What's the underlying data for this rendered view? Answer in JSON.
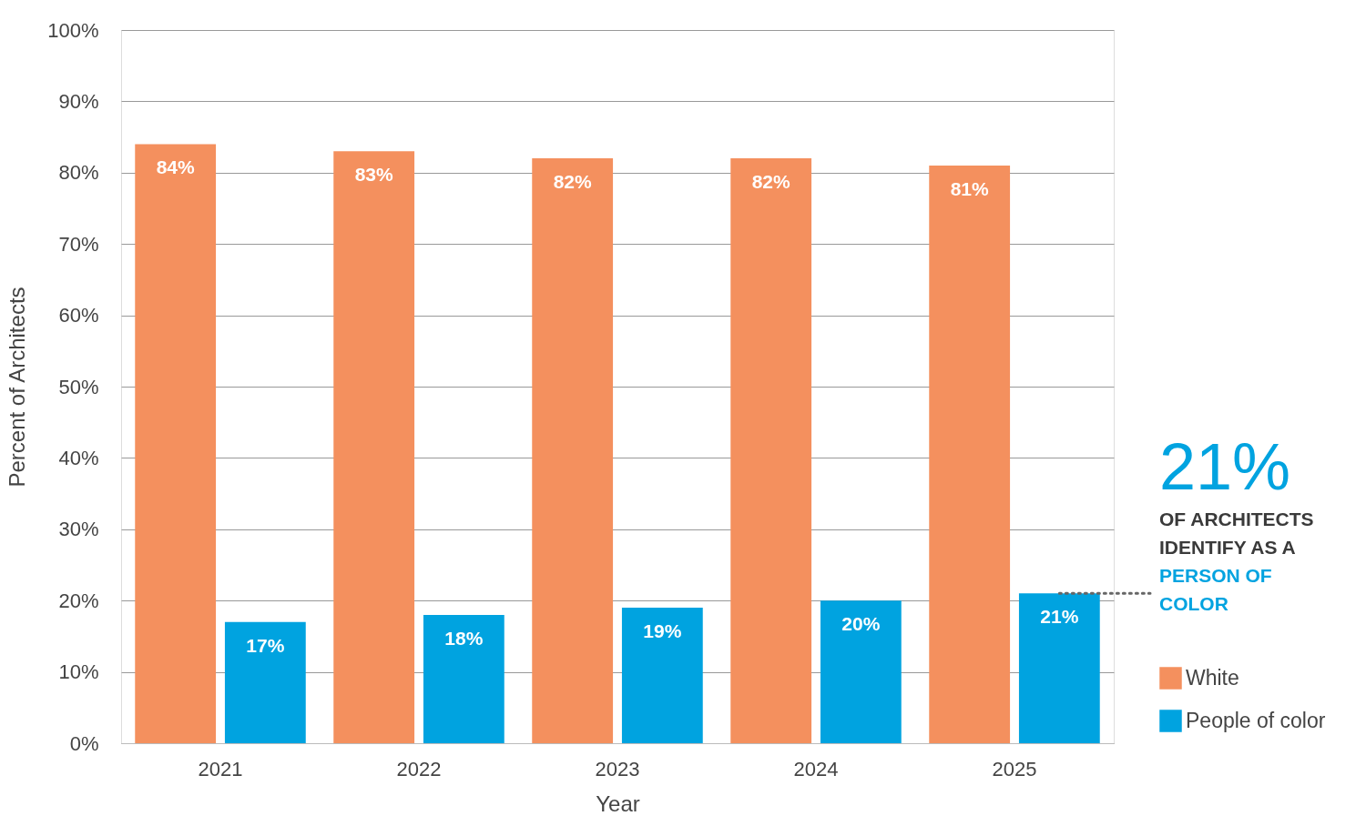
{
  "chart_data": {
    "type": "bar",
    "xlabel": "Year",
    "ylabel": "Percent of Architects",
    "categories": [
      "2021",
      "2022",
      "2023",
      "2024",
      "2025"
    ],
    "series": [
      {
        "name": "White",
        "color": "#f4905e",
        "values": [
          84,
          83,
          82,
          82,
          81
        ],
        "value_labels": [
          "84%",
          "83%",
          "82%",
          "82%",
          "81%"
        ]
      },
      {
        "name": "People of color",
        "color": "#00a3e0",
        "values": [
          17,
          18,
          19,
          20,
          21
        ],
        "value_labels": [
          "17%",
          "18%",
          "19%",
          "20%",
          "21%"
        ]
      }
    ],
    "ylim": [
      0,
      100
    ],
    "yticks": [
      {
        "value": 0,
        "label": "0%"
      },
      {
        "value": 10,
        "label": "10%"
      },
      {
        "value": 20,
        "label": "20%"
      },
      {
        "value": 30,
        "label": "30%"
      },
      {
        "value": 40,
        "label": "40%"
      },
      {
        "value": 50,
        "label": "50%"
      },
      {
        "value": 60,
        "label": "60%"
      },
      {
        "value": 70,
        "label": "70%"
      },
      {
        "value": 80,
        "label": "80%"
      },
      {
        "value": 90,
        "label": "90%"
      },
      {
        "value": 100,
        "label": "100%"
      }
    ],
    "grid": "y",
    "legend": "right",
    "annotations": [
      {
        "text": "21% OF ARCHITECTS IDENTIFY AS A PERSON OF COLOR",
        "x": "2025",
        "y": 21
      }
    ]
  }
}
